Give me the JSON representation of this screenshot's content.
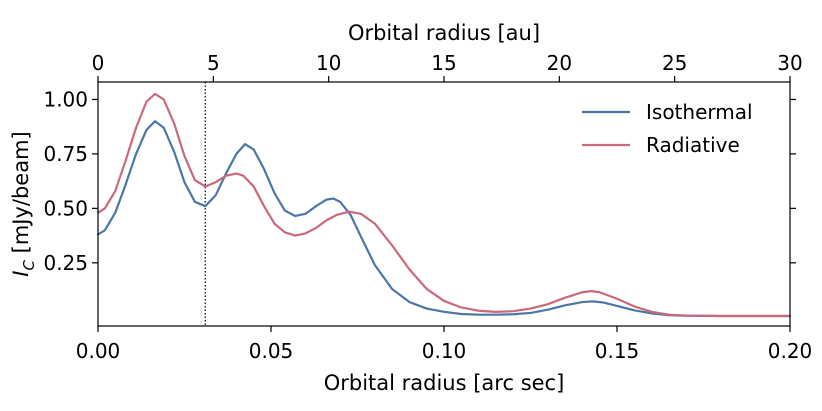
{
  "chart_data": {
    "type": "line",
    "xlabel": "Orbital radius [arc sec]",
    "ylabel_main": "I",
    "ylabel_sub": "C",
    "ylabel_rest": " [mJy/beam]",
    "top_xlabel": "Orbital radius [au]",
    "xlim": [
      0.0,
      0.2
    ],
    "ylim": [
      -0.04,
      1.08
    ],
    "top_xlim": [
      0,
      30
    ],
    "x_ticks": [
      0.0,
      0.05,
      0.1,
      0.15,
      0.2
    ],
    "x_tick_labels": [
      "0.00",
      "0.05",
      "0.10",
      "0.15",
      "0.20"
    ],
    "y_ticks": [
      0.25,
      0.5,
      0.75,
      1.0
    ],
    "y_tick_labels": [
      "0.25",
      "0.50",
      "0.75",
      "1.00"
    ],
    "top_ticks": [
      0,
      5,
      10,
      15,
      20,
      25,
      30
    ],
    "top_tick_labels": [
      "0",
      "5",
      "10",
      "15",
      "20",
      "25",
      "30"
    ],
    "vline_x": 0.031,
    "grid": false,
    "legend_position": "top-right",
    "series": [
      {
        "name": "Isothermal",
        "color": "#4a76a8",
        "points": [
          [
            0.0,
            0.38
          ],
          [
            0.002,
            0.4
          ],
          [
            0.005,
            0.48
          ],
          [
            0.008,
            0.61
          ],
          [
            0.011,
            0.75
          ],
          [
            0.014,
            0.86
          ],
          [
            0.0165,
            0.9
          ],
          [
            0.019,
            0.87
          ],
          [
            0.022,
            0.76
          ],
          [
            0.025,
            0.62
          ],
          [
            0.028,
            0.53
          ],
          [
            0.031,
            0.51
          ],
          [
            0.034,
            0.56
          ],
          [
            0.037,
            0.66
          ],
          [
            0.04,
            0.75
          ],
          [
            0.0425,
            0.795
          ],
          [
            0.045,
            0.77
          ],
          [
            0.048,
            0.68
          ],
          [
            0.051,
            0.57
          ],
          [
            0.054,
            0.49
          ],
          [
            0.057,
            0.465
          ],
          [
            0.06,
            0.475
          ],
          [
            0.063,
            0.51
          ],
          [
            0.066,
            0.54
          ],
          [
            0.068,
            0.545
          ],
          [
            0.07,
            0.53
          ],
          [
            0.073,
            0.47
          ],
          [
            0.076,
            0.37
          ],
          [
            0.08,
            0.24
          ],
          [
            0.085,
            0.13
          ],
          [
            0.09,
            0.07
          ],
          [
            0.095,
            0.04
          ],
          [
            0.1,
            0.025
          ],
          [
            0.105,
            0.015
          ],
          [
            0.11,
            0.012
          ],
          [
            0.115,
            0.012
          ],
          [
            0.12,
            0.014
          ],
          [
            0.125,
            0.02
          ],
          [
            0.13,
            0.035
          ],
          [
            0.135,
            0.055
          ],
          [
            0.14,
            0.07
          ],
          [
            0.143,
            0.073
          ],
          [
            0.146,
            0.068
          ],
          [
            0.15,
            0.052
          ],
          [
            0.155,
            0.032
          ],
          [
            0.16,
            0.018
          ],
          [
            0.165,
            0.01
          ],
          [
            0.17,
            0.007
          ],
          [
            0.18,
            0.006
          ],
          [
            0.19,
            0.006
          ],
          [
            0.2,
            0.006
          ]
        ]
      },
      {
        "name": "Radiative",
        "color": "#c96a7b",
        "points": [
          [
            0.0,
            0.48
          ],
          [
            0.002,
            0.5
          ],
          [
            0.005,
            0.58
          ],
          [
            0.008,
            0.72
          ],
          [
            0.011,
            0.87
          ],
          [
            0.014,
            0.99
          ],
          [
            0.0165,
            1.025
          ],
          [
            0.019,
            1.0
          ],
          [
            0.022,
            0.89
          ],
          [
            0.025,
            0.74
          ],
          [
            0.028,
            0.63
          ],
          [
            0.031,
            0.6
          ],
          [
            0.034,
            0.62
          ],
          [
            0.037,
            0.65
          ],
          [
            0.04,
            0.66
          ],
          [
            0.042,
            0.65
          ],
          [
            0.045,
            0.6
          ],
          [
            0.048,
            0.51
          ],
          [
            0.051,
            0.43
          ],
          [
            0.054,
            0.39
          ],
          [
            0.057,
            0.375
          ],
          [
            0.06,
            0.385
          ],
          [
            0.063,
            0.41
          ],
          [
            0.066,
            0.445
          ],
          [
            0.069,
            0.47
          ],
          [
            0.0725,
            0.485
          ],
          [
            0.076,
            0.475
          ],
          [
            0.08,
            0.43
          ],
          [
            0.085,
            0.33
          ],
          [
            0.09,
            0.22
          ],
          [
            0.095,
            0.13
          ],
          [
            0.1,
            0.075
          ],
          [
            0.105,
            0.045
          ],
          [
            0.11,
            0.03
          ],
          [
            0.115,
            0.025
          ],
          [
            0.12,
            0.028
          ],
          [
            0.125,
            0.04
          ],
          [
            0.13,
            0.06
          ],
          [
            0.135,
            0.09
          ],
          [
            0.14,
            0.115
          ],
          [
            0.1425,
            0.12
          ],
          [
            0.145,
            0.115
          ],
          [
            0.15,
            0.085
          ],
          [
            0.155,
            0.05
          ],
          [
            0.16,
            0.025
          ],
          [
            0.165,
            0.012
          ],
          [
            0.17,
            0.008
          ],
          [
            0.18,
            0.006
          ],
          [
            0.19,
            0.006
          ],
          [
            0.2,
            0.006
          ]
        ]
      }
    ]
  }
}
